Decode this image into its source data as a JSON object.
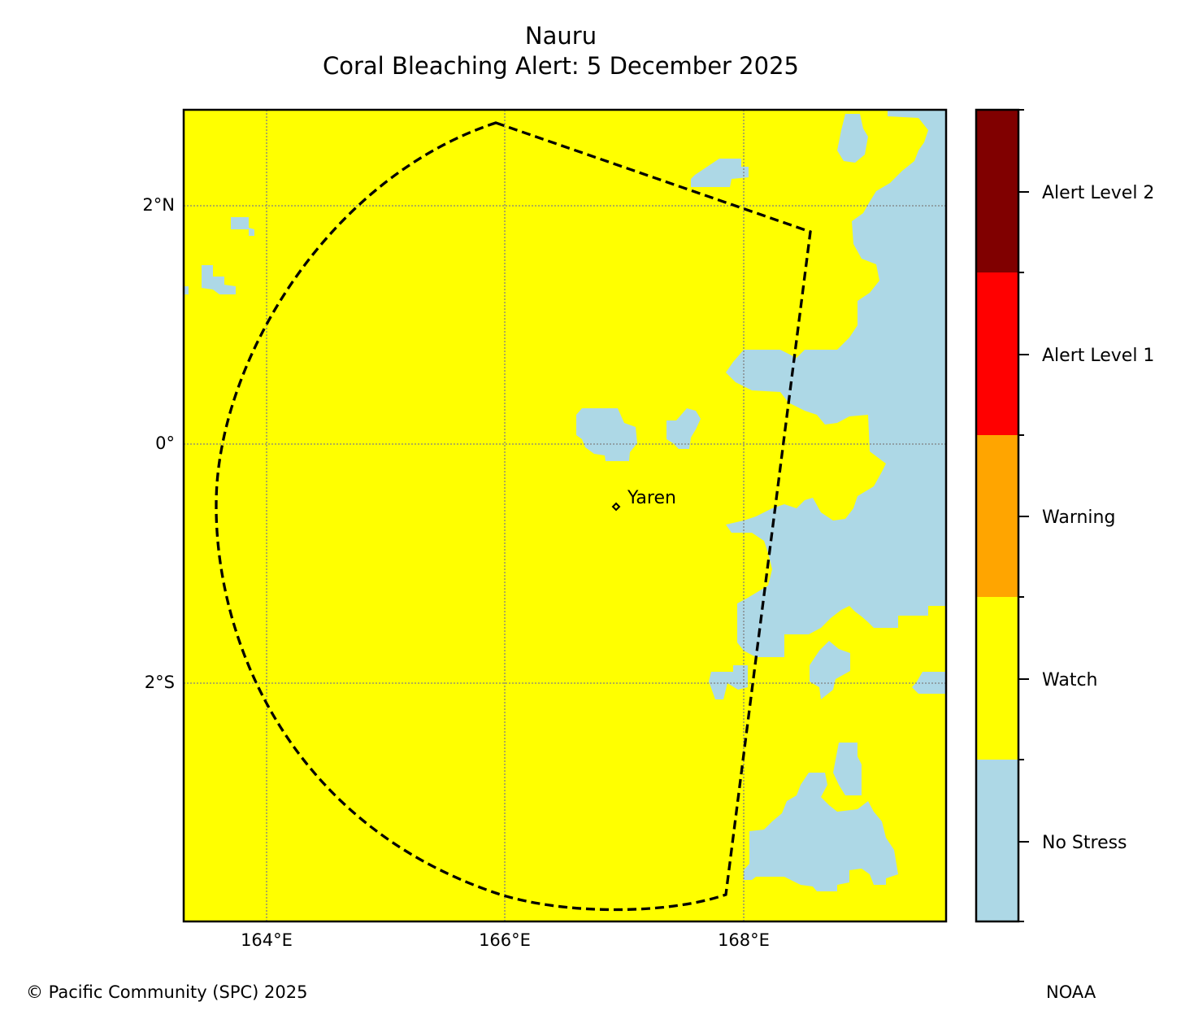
{
  "title": {
    "line1": "Nauru",
    "line2": "Coral Bleaching Alert: 5 December 2025"
  },
  "map": {
    "lat_ticks": [
      {
        "lat": 2,
        "label": "2°N"
      },
      {
        "lat": 0,
        "label": "0°"
      },
      {
        "lat": -2,
        "label": "2°S"
      }
    ],
    "lon_ticks": [
      {
        "lon": 164,
        "label": "164°E"
      },
      {
        "lon": 166,
        "label": "166°E"
      },
      {
        "lon": 168,
        "label": "168°E"
      }
    ],
    "place": {
      "name": "Yaren",
      "lon": 166.92,
      "lat": -0.53
    },
    "colors": {
      "background_level": "#ffff00",
      "no_stress_patches": "#add8e6",
      "boundary": "#000000",
      "gridlines": "#808080"
    }
  },
  "legend": {
    "items": [
      {
        "label": "Alert Level 2",
        "color": "#800000"
      },
      {
        "label": "Alert Level 1",
        "color": "#ff0000"
      },
      {
        "label": "Warning",
        "color": "#ffa500"
      },
      {
        "label": "Watch",
        "color": "#ffff00"
      },
      {
        "label": "No Stress",
        "color": "#add8e6"
      }
    ]
  },
  "footer": {
    "credit": "© Pacific Community (SPC) 2025",
    "source": "NOAA"
  }
}
